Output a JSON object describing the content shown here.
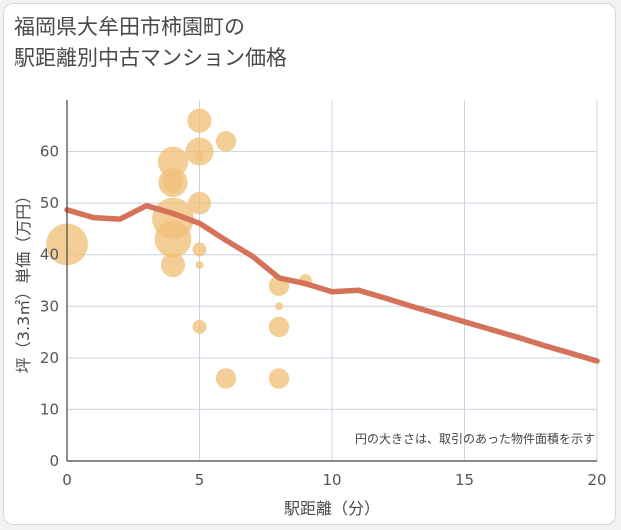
{
  "title_lines": [
    "福岡県大牟田市柿園町の",
    "駅距離別中古マンション価格"
  ],
  "chart_data": {
    "type": "scatter",
    "xlabel": "駅距離（分）",
    "ylabel": "坪（3.3㎡）単価（万円）",
    "xlim": [
      0,
      20
    ],
    "ylim": [
      0,
      70
    ],
    "xticks": [
      "0",
      "5",
      "10",
      "15",
      "20"
    ],
    "yticks": [
      "0",
      "10",
      "20",
      "30",
      "40",
      "50",
      "60"
    ],
    "note": "円の大きさは、取引のあった物件面積を示す",
    "scatter_color": "#f0c078",
    "line_color": "#d4725a",
    "points": [
      {
        "x": 0,
        "y": 42,
        "size": 3
      },
      {
        "x": 4,
        "y": 47,
        "size": 3
      },
      {
        "x": 4,
        "y": 43,
        "size": 2.6
      },
      {
        "x": 4,
        "y": 38,
        "size": 1.6
      },
      {
        "x": 4,
        "y": 58,
        "size": 2.1
      },
      {
        "x": 4,
        "y": 54,
        "size": 2
      },
      {
        "x": 4,
        "y": 54,
        "size": 1.3
      },
      {
        "x": 5,
        "y": 66,
        "size": 1.6
      },
      {
        "x": 5,
        "y": 60,
        "size": 1.9
      },
      {
        "x": 5,
        "y": 59,
        "size": 0.3
      },
      {
        "x": 5,
        "y": 50,
        "size": 1.5
      },
      {
        "x": 5,
        "y": 41,
        "size": 0.8
      },
      {
        "x": 5,
        "y": 38,
        "size": 0.3
      },
      {
        "x": 5,
        "y": 26,
        "size": 0.8
      },
      {
        "x": 6,
        "y": 62,
        "size": 1.3
      },
      {
        "x": 6,
        "y": 16,
        "size": 1.3
      },
      {
        "x": 8,
        "y": 34,
        "size": 1.3
      },
      {
        "x": 8,
        "y": 30,
        "size": 0.3
      },
      {
        "x": 8,
        "y": 26,
        "size": 1.3
      },
      {
        "x": 8,
        "y": 16,
        "size": 1.3
      },
      {
        "x": 9,
        "y": 35,
        "size": 0.7
      }
    ],
    "trend": {
      "x": [
        0,
        1,
        2,
        3,
        4,
        5,
        6,
        7,
        8,
        9,
        10,
        11,
        12,
        13,
        14,
        15,
        16,
        17,
        18,
        19,
        20
      ],
      "y": [
        48.7,
        47.2,
        46.9,
        49.5,
        48.0,
        46.1,
        42.8,
        39.7,
        35.5,
        34.4,
        32.8,
        33.1,
        31.6,
        30.0,
        28.5,
        27.0,
        25.5,
        24.0,
        22.4,
        20.9,
        19.4
      ]
    }
  }
}
